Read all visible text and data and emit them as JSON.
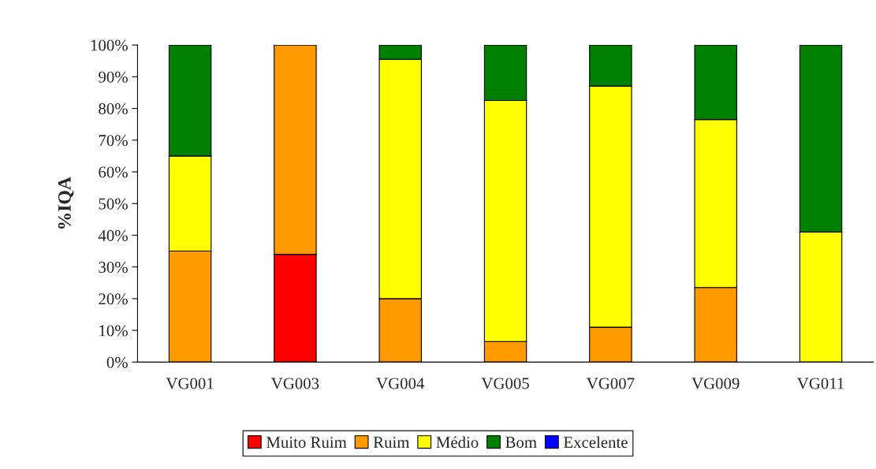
{
  "chart_data": {
    "type": "bar",
    "stacked": true,
    "ylabel": "%IQA",
    "categories": [
      "VG001",
      "VG003",
      "VG004",
      "VG005",
      "VG007",
      "VG009",
      "VG011"
    ],
    "series": [
      {
        "name": "Muito Ruim",
        "color": "#ff0000",
        "values": [
          0,
          34,
          0,
          0,
          0,
          0,
          0
        ]
      },
      {
        "name": "Ruim",
        "color": "#ff9900",
        "values": [
          35,
          66,
          20,
          6.5,
          11,
          23.5,
          0
        ]
      },
      {
        "name": "Médio",
        "color": "#ffff00",
        "values": [
          30,
          0,
          75.5,
          76,
          76,
          53,
          41
        ]
      },
      {
        "name": "Bom",
        "color": "#008000",
        "values": [
          35,
          0,
          4.5,
          17.5,
          13,
          23.5,
          59
        ]
      },
      {
        "name": "Excelente",
        "color": "#0000ff",
        "values": [
          0,
          0,
          0,
          0,
          0,
          0,
          0
        ]
      }
    ],
    "ylim": [
      0,
      100
    ],
    "yticks": [
      {
        "value": 0,
        "label": "0%"
      },
      {
        "value": 10,
        "label": "10%"
      },
      {
        "value": 20,
        "label": "20%"
      },
      {
        "value": 30,
        "label": "30%"
      },
      {
        "value": 40,
        "label": "40%"
      },
      {
        "value": 50,
        "label": "50%"
      },
      {
        "value": 60,
        "label": "60%"
      },
      {
        "value": 70,
        "label": "70%"
      },
      {
        "value": 80,
        "label": "80%"
      },
      {
        "value": 90,
        "label": "90%"
      },
      {
        "value": 100,
        "label": "100%"
      }
    ],
    "grid": false,
    "legend": "bottom"
  }
}
